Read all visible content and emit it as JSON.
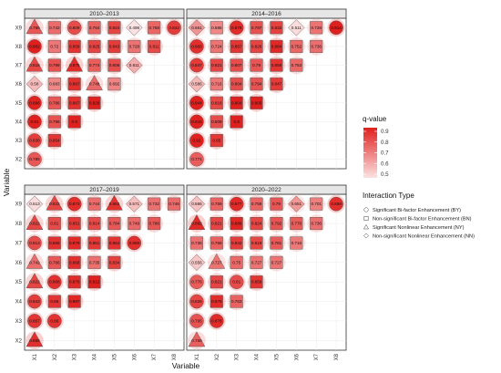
{
  "chart_data": {
    "type": "heatmap",
    "title": "",
    "xlabel": "Variable",
    "ylabel": "Variable",
    "x_categories": [
      "X1",
      "X2",
      "X3",
      "X4",
      "X5",
      "X6",
      "X7",
      "X8"
    ],
    "y_categories": [
      "X2",
      "X3",
      "X4",
      "X5",
      "X6",
      "X7",
      "X8",
      "X9"
    ],
    "color_scale": {
      "title": "q-value",
      "min": 0.5,
      "max": 0.9,
      "ticks": [
        "0.9",
        "0.8",
        "0.7",
        "0.6",
        "0.5"
      ],
      "low_color": "#fbe1e1",
      "high_color": "#e0201e"
    },
    "shape_legend": {
      "title": "Interaction Type",
      "items": [
        {
          "code": "BY",
          "shape": "circle",
          "label": "Significant Bi-factor Enhancement (BY)"
        },
        {
          "code": "BN",
          "shape": "square",
          "label": "Non-significant Bi-factor Enhancement (BN)"
        },
        {
          "code": "NY",
          "shape": "triangle",
          "label": "Significant Nonlinear Enhancement (NY)"
        },
        {
          "code": "NN",
          "shape": "diamond",
          "label": "Non-significant Nonlinear Enhancement (NN)"
        }
      ]
    },
    "facets": [
      {
        "title": "2010–2013",
        "rows": [
          {
            "y": "X9",
            "cells": [
              [
                "X1",
                "NY",
                "0.786"
              ],
              [
                "X2",
                "BN",
                "0.742"
              ],
              [
                "X3",
                "BY",
                "0.809"
              ],
              [
                "X4",
                "BN",
                "0.764"
              ],
              [
                "X5",
                "BN",
                "0.824"
              ],
              [
                "X6",
                "NN",
                "0.498"
              ],
              [
                "X7",
                "BN",
                "0.758"
              ],
              [
                "X8",
                "BY",
                "0.842"
              ]
            ]
          },
          {
            "y": "X8",
            "cells": [
              [
                "X1",
                "BY",
                "0.902"
              ],
              [
                "X2",
                "BN",
                "0.72"
              ],
              [
                "X3",
                "BN",
                "0.858"
              ],
              [
                "X4",
                "BN",
                "0.825"
              ],
              [
                "X5",
                "BN",
                "0.843"
              ],
              [
                "X6",
                "BN",
                "0.728"
              ],
              [
                "X7",
                "BN",
                "0.811"
              ]
            ]
          },
          {
            "y": "X7",
            "cells": [
              [
                "X1",
                "NY",
                "0.818"
              ],
              [
                "X2",
                "BN",
                "0.799"
              ],
              [
                "X3",
                "NY",
                "0.875"
              ],
              [
                "X4",
                "BN",
                "0.774"
              ],
              [
                "X5",
                "BN",
                "0.806"
              ],
              [
                "X6",
                "NN",
                "0.611"
              ]
            ]
          },
          {
            "y": "X6",
            "cells": [
              [
                "X1",
                "NN",
                "0.58"
              ],
              [
                "X2",
                "BN",
                "0.683"
              ],
              [
                "X3",
                "BN",
                "0.867"
              ],
              [
                "X4",
                "NY",
                "0.748"
              ],
              [
                "X5",
                "BN",
                "0.692"
              ]
            ]
          },
          {
            "y": "X5",
            "cells": [
              [
                "X1",
                "BY",
                "0.896"
              ],
              [
                "X2",
                "BN",
                "0.786"
              ],
              [
                "X3",
                "BN",
                "0.867"
              ],
              [
                "X4",
                "BN",
                "0.929"
              ]
            ]
          },
          {
            "y": "X4",
            "cells": [
              [
                "X1",
                "BY",
                "0.91"
              ],
              [
                "X2",
                "BN",
                "0.796"
              ],
              [
                "X3",
                "BN",
                "0.9"
              ]
            ]
          },
          {
            "y": "X3",
            "cells": [
              [
                "X1",
                "BY",
                "0.838"
              ],
              [
                "X2",
                "BN",
                "0.854"
              ]
            ]
          },
          {
            "y": "X2",
            "cells": [
              [
                "X1",
                "BY",
                "0.785"
              ]
            ]
          }
        ]
      },
      {
        "title": "2014–2016",
        "rows": [
          {
            "y": "X9",
            "cells": [
              [
                "X1",
                "NN",
                "0.661"
              ],
              [
                "X2",
                "BN",
                "0.686"
              ],
              [
                "X3",
                "BY",
                "0.878"
              ],
              [
                "X4",
                "BN",
                "0.797"
              ],
              [
                "X5",
                "BN",
                "0.832"
              ],
              [
                "X6",
                "NN",
                "0.511"
              ],
              [
                "X7",
                "BN",
                "0.728"
              ],
              [
                "X8",
                "BY",
                "0.914"
              ]
            ]
          },
          {
            "y": "X8",
            "cells": [
              [
                "X1",
                "BY",
                "0.869"
              ],
              [
                "X2",
                "BN",
                "0.724"
              ],
              [
                "X3",
                "BN",
                "0.857"
              ],
              [
                "X4",
                "BN",
                "0.826"
              ],
              [
                "X5",
                "BN",
                "0.884"
              ],
              [
                "X6",
                "BN",
                "0.752"
              ],
              [
                "X7",
                "BN",
                "0.736"
              ]
            ]
          },
          {
            "y": "X7",
            "cells": [
              [
                "X1",
                "BY",
                "0.847"
              ],
              [
                "X2",
                "BN",
                "0.821"
              ],
              [
                "X3",
                "BN",
                "0.807"
              ],
              [
                "X4",
                "BN",
                "0.79"
              ],
              [
                "X5",
                "BN",
                "0.859"
              ],
              [
                "X6",
                "BN",
                "0.753"
              ]
            ]
          },
          {
            "y": "X6",
            "cells": [
              [
                "X1",
                "NN",
                "0.586"
              ],
              [
                "X2",
                "BN",
                "0.716"
              ],
              [
                "X3",
                "BN",
                "0.804"
              ],
              [
                "X4",
                "BN",
                "0.794"
              ],
              [
                "X5",
                "BN",
                "0.847"
              ]
            ]
          },
          {
            "y": "X5",
            "cells": [
              [
                "X1",
                "BY",
                "0.944"
              ],
              [
                "X2",
                "BN",
                "0.818"
              ],
              [
                "X3",
                "BN",
                "0.904"
              ],
              [
                "X4",
                "BN",
                "0.905"
              ]
            ]
          },
          {
            "y": "X4",
            "cells": [
              [
                "X1",
                "BY",
                "0.916"
              ],
              [
                "X2",
                "BN",
                "0.809"
              ],
              [
                "X3",
                "BN",
                "0.9"
              ]
            ]
          },
          {
            "y": "X3",
            "cells": [
              [
                "X1",
                "BY",
                "0.92"
              ],
              [
                "X2",
                "BN",
                "0.85"
              ]
            ]
          },
          {
            "y": "X2",
            "cells": [
              [
                "X1",
                "BY",
                "0.771"
              ]
            ]
          }
        ]
      },
      {
        "title": "2017–2019",
        "rows": [
          {
            "y": "X9",
            "cells": [
              [
                "X1",
                "NN",
                "0.513"
              ],
              [
                "X2",
                "NY",
                "0.822"
              ],
              [
                "X3",
                "BY",
                "0.873"
              ],
              [
                "X4",
                "BN",
                "0.744"
              ],
              [
                "X5",
                "NY",
                "0.863"
              ],
              [
                "X6",
                "NN",
                "0.571"
              ],
              [
                "X7",
                "BN",
                "0.732"
              ],
              [
                "X8",
                "BN",
                "0.746"
              ]
            ]
          },
          {
            "y": "X8",
            "cells": [
              [
                "X1",
                "NY",
                "0.822"
              ],
              [
                "X2",
                "BN",
                "0.81"
              ],
              [
                "X3",
                "BN",
                "0.851"
              ],
              [
                "X4",
                "BN",
                "0.814"
              ],
              [
                "X5",
                "BN",
                "0.784"
              ],
              [
                "X6",
                "BN",
                "0.749"
              ],
              [
                "X7",
                "BN",
                "0.786"
              ]
            ]
          },
          {
            "y": "X7",
            "cells": [
              [
                "X1",
                "BY",
                "0.813"
              ],
              [
                "X2",
                "BN",
                "0.866"
              ],
              [
                "X3",
                "BN",
                "0.879"
              ],
              [
                "X4",
                "BN",
                "0.851"
              ],
              [
                "X5",
                "BN",
                "0.864"
              ],
              [
                "X6",
                "BY",
                "0.869"
              ]
            ]
          },
          {
            "y": "X6",
            "cells": [
              [
                "X1",
                "NY",
                "0.742"
              ],
              [
                "X2",
                "BN",
                "0.786"
              ],
              [
                "X3",
                "BN",
                "0.868"
              ],
              [
                "X4",
                "BN",
                "0.735"
              ],
              [
                "X5",
                "BN",
                "0.834"
              ]
            ]
          },
          {
            "y": "X5",
            "cells": [
              [
                "X1",
                "NY",
                "0.822"
              ],
              [
                "X2",
                "BY",
                "0.868"
              ],
              [
                "X3",
                "BN",
                "0.878"
              ],
              [
                "X4",
                "BN",
                "0.912"
              ]
            ]
          },
          {
            "y": "X4",
            "cells": [
              [
                "X1",
                "BY",
                "0.843"
              ],
              [
                "X2",
                "BN",
                "0.86"
              ],
              [
                "X3",
                "BN",
                "0.887"
              ]
            ]
          },
          {
            "y": "X3",
            "cells": [
              [
                "X1",
                "BY",
                "0.857"
              ],
              [
                "X2",
                "BY",
                "0.86"
              ]
            ]
          },
          {
            "y": "X2",
            "cells": [
              [
                "X1",
                "NY",
                "0.868"
              ]
            ]
          }
        ]
      },
      {
        "title": "2020–2022",
        "rows": [
          {
            "y": "X9",
            "cells": [
              [
                "X1",
                "NN",
                "0.566"
              ],
              [
                "X2",
                "BN",
                "0.759"
              ],
              [
                "X3",
                "BY",
                "0.877"
              ],
              [
                "X4",
                "BN",
                "0.759"
              ],
              [
                "X5",
                "BN",
                "0.79"
              ],
              [
                "X6",
                "NN",
                "0.651"
              ],
              [
                "X7",
                "BN",
                "0.701"
              ],
              [
                "X8",
                "BY",
                "0.869"
              ]
            ]
          },
          {
            "y": "X8",
            "cells": [
              [
                "X1",
                "NY",
                "0.882"
              ],
              [
                "X2",
                "BN",
                "0.821"
              ],
              [
                "X3",
                "BN",
                "0.889"
              ],
              [
                "X4",
                "BN",
                "0.824"
              ],
              [
                "X5",
                "BN",
                "0.792"
              ],
              [
                "X6",
                "BN",
                "0.776"
              ],
              [
                "X7",
                "BN",
                "0.736"
              ]
            ]
          },
          {
            "y": "X7",
            "cells": [
              [
                "X1",
                "BN",
                "0.736"
              ],
              [
                "X2",
                "BN",
                "0.768"
              ],
              [
                "X3",
                "BN",
                "0.842"
              ],
              [
                "X4",
                "BN",
                "0.819"
              ],
              [
                "X5",
                "BN",
                "0.781"
              ],
              [
                "X6",
                "BN",
                "0.716"
              ]
            ]
          },
          {
            "y": "X6",
            "cells": [
              [
                "X1",
                "NN",
                "0.556"
              ],
              [
                "X2",
                "NY",
                "0.727"
              ],
              [
                "X3",
                "BN",
                "0.75"
              ],
              [
                "X4",
                "BN",
                "0.727"
              ],
              [
                "X5",
                "BN",
                "0.727"
              ]
            ]
          },
          {
            "y": "X5",
            "cells": [
              [
                "X1",
                "BY",
                "0.776"
              ],
              [
                "X2",
                "BN",
                "0.821"
              ],
              [
                "X3",
                "BY",
                "0.81"
              ],
              [
                "X4",
                "BN",
                "0.859"
              ]
            ]
          },
          {
            "y": "X4",
            "cells": [
              [
                "X1",
                "BY",
                "0.826"
              ],
              [
                "X2",
                "BN",
                "0.876"
              ],
              [
                "X3",
                "BN",
                "0.763"
              ]
            ]
          },
          {
            "y": "X3",
            "cells": [
              [
                "X1",
                "BY",
                "0.795"
              ],
              [
                "X2",
                "BY",
                "0.878"
              ]
            ]
          },
          {
            "y": "X2",
            "cells": [
              [
                "X1",
                "NY",
                "0.769"
              ]
            ]
          }
        ]
      }
    ]
  }
}
